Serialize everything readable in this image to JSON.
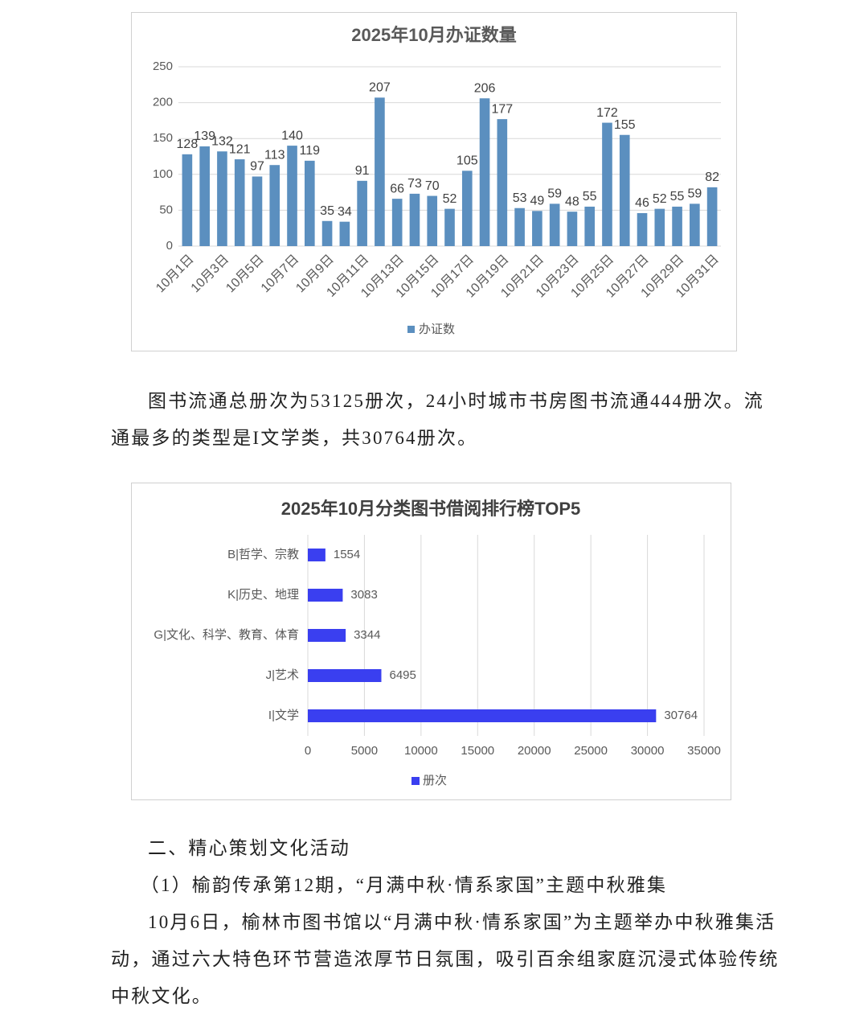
{
  "chart_data": [
    {
      "type": "bar",
      "title": "2025年10月办证数量",
      "categories": [
        "10月1日",
        null,
        "10月3日",
        null,
        "10月5日",
        null,
        "10月7日",
        null,
        "10月9日",
        null,
        "10月11日",
        null,
        "10月13日",
        null,
        "10月15日",
        null,
        "10月17日",
        null,
        "10月19日",
        null,
        "10月21日",
        null,
        "10月23日",
        null,
        "10月25日",
        null,
        "10月27日",
        null,
        "10月29日",
        null,
        "10月31日"
      ],
      "series": [
        {
          "name": "办证数",
          "color": "#5b8fbf",
          "values": [
            128,
            139,
            132,
            121,
            97,
            113,
            140,
            119,
            35,
            34,
            91,
            207,
            66,
            73,
            70,
            52,
            105,
            206,
            177,
            53,
            49,
            59,
            48,
            55,
            172,
            155,
            46,
            52,
            55,
            59,
            82
          ]
        }
      ],
      "ylim": [
        0,
        250
      ],
      "yticks": [
        0,
        50,
        100,
        150,
        200,
        250
      ],
      "grid": true,
      "legend": "bottom"
    },
    {
      "type": "barh",
      "title": "2025年10月分类图书借阅排行榜TOP5",
      "categories": [
        "B|哲学、宗教",
        "K|历史、地理",
        "G|文化、科学、教育、体育",
        "J|艺术",
        "I|文学"
      ],
      "series": [
        {
          "name": "册次",
          "color": "#3a3ff0",
          "values": [
            1554,
            3083,
            3344,
            6495,
            30764
          ]
        }
      ],
      "xlim": [
        0,
        35000
      ],
      "xticks": [
        0,
        5000,
        10000,
        15000,
        20000,
        25000,
        30000,
        35000
      ],
      "grid": true,
      "legend": "bottom"
    }
  ],
  "paragraphs": [
    "图书流通总册次为53125册次，24小时城市书房图书流通444册次。流通最多的类型是I文学类，共30764册次。",
    "二、精心策划文化活动",
    "（1）榆韵传承第12期，“月满中秋·情系家国”主题中秋雅集",
    "10月6日，榆林市图书馆以“月满中秋·情系家国”为主题举办中秋雅集活动，通过六大特色环节营造浓厚节日氛围，吸引百余组家庭沉浸式体验传统中秋文化。"
  ]
}
